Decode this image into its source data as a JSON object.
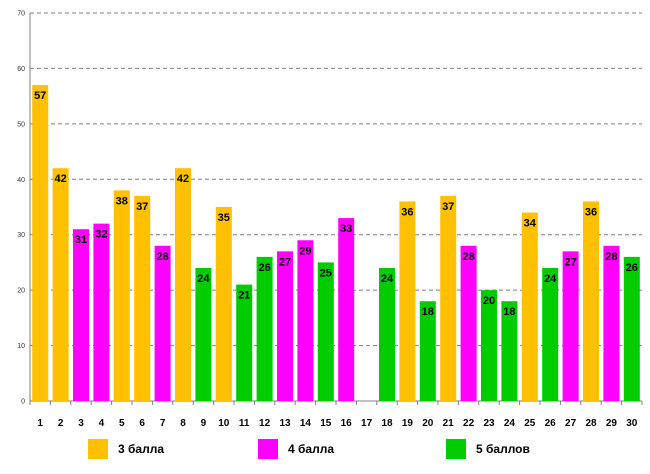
{
  "chart_data": {
    "type": "bar",
    "title": "",
    "xlabel": "",
    "ylabel": "",
    "ylim": [
      0,
      70
    ],
    "yticks": [
      0,
      10,
      20,
      30,
      40,
      50,
      60,
      70
    ],
    "grid": true,
    "categories": [
      "1",
      "2",
      "3",
      "4",
      "5",
      "6",
      "7",
      "8",
      "9",
      "10",
      "11",
      "12",
      "13",
      "14",
      "15",
      "16",
      "17",
      "18",
      "19",
      "20",
      "21",
      "22",
      "23",
      "24",
      "25",
      "26",
      "27",
      "28",
      "29",
      "30"
    ],
    "values": [
      57,
      42,
      31,
      32,
      38,
      37,
      28,
      42,
      24,
      35,
      21,
      26,
      27,
      29,
      25,
      33,
      null,
      24,
      36,
      18,
      37,
      28,
      20,
      18,
      34,
      24,
      27,
      36,
      28,
      26
    ],
    "labels": [
      "57",
      "42",
      "31",
      "32",
      "38",
      "37",
      "28",
      "42",
      "24",
      "35",
      "21",
      "26",
      "27",
      "29",
      "25",
      "33",
      "",
      "24",
      "36",
      "18",
      "37",
      "28",
      "20",
      "18",
      "34",
      "24",
      "27",
      "36",
      "28",
      "26"
    ],
    "series_of_bar": [
      "s3",
      "s3",
      "s4",
      "s4",
      "s3",
      "s3",
      "s4",
      "s3",
      "s5",
      "s3",
      "s5",
      "s5",
      "s4",
      "s4",
      "s5",
      "s4",
      null,
      "s5",
      "s3",
      "s5",
      "s3",
      "s4",
      "s5",
      "s5",
      "s3",
      "s5",
      "s4",
      "s3",
      "s4",
      "s5"
    ],
    "series": [
      {
        "id": "s3",
        "name": "3 балла",
        "color": "#FFC000"
      },
      {
        "id": "s4",
        "name": "4 балла",
        "color": "#FF00FF"
      },
      {
        "id": "s5",
        "name": "5 баллов",
        "color": "#00CC00"
      }
    ],
    "legend_position": "bottom"
  }
}
